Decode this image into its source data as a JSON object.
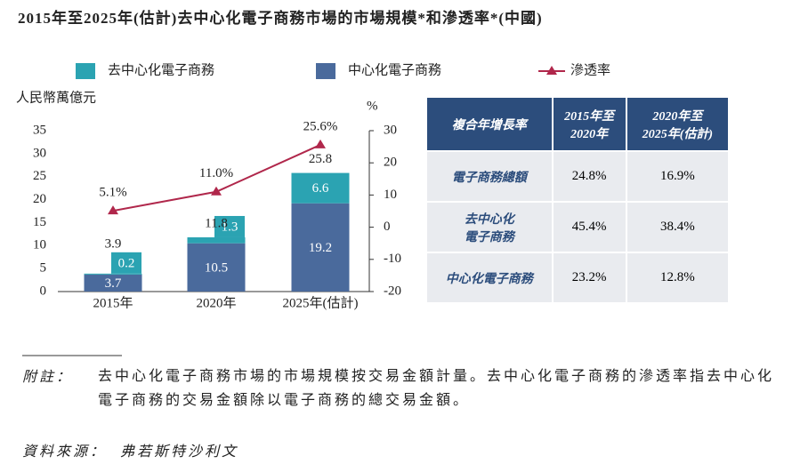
{
  "chart_data": {
    "type": "bar",
    "title": "2015年至2025年(估計)去中心化電子商務市場的市場規模*和滲透率*(中國)",
    "categories": [
      "2015年",
      "2020年",
      "2025年(估計)"
    ],
    "series": [
      {
        "name": "去中心化電子商務",
        "color": "#2ba3b2",
        "values": [
          0.2,
          1.3,
          6.6
        ]
      },
      {
        "name": "中心化電子商務",
        "color": "#4a6a9c",
        "values": [
          3.7,
          10.5,
          19.2
        ]
      },
      {
        "name": "滲透率",
        "type": "line",
        "axis": "y2",
        "color": "#b0274b",
        "values": [
          5.1,
          11.0,
          25.6
        ],
        "value_labels": [
          "5.1%",
          "11.0%",
          "25.6%"
        ]
      }
    ],
    "totals": [
      3.9,
      11.8,
      25.8
    ],
    "ylabel": "人民幣萬億元",
    "y2label": "%",
    "ylim": [
      0,
      35
    ],
    "yticks": [
      0,
      5,
      10,
      15,
      20,
      25,
      30,
      35
    ],
    "y2lim": [
      -20,
      30
    ],
    "y2ticks": [
      -20,
      -10,
      0,
      10,
      20,
      30
    ]
  },
  "table": {
    "header": [
      "複合年增長率",
      "2015年至\n2020年",
      "2020年至\n2025年(估計)"
    ],
    "rows": [
      [
        "電子商務總額",
        "24.8%",
        "16.9%"
      ],
      [
        "去中心化\n電子商務",
        "45.4%",
        "38.4%"
      ],
      [
        "中心化電子商務",
        "23.2%",
        "12.8%"
      ]
    ]
  },
  "notes": {
    "label": "附註：",
    "text": "去中心化電子商務市場的市場規模按交易金額計量。去中心化電子商務的滲透率指去中心化電子商務的交易金額除以電子商務的總交易金額。"
  },
  "source": {
    "label": "資料來源：",
    "text": "弗若斯特沙利文"
  }
}
